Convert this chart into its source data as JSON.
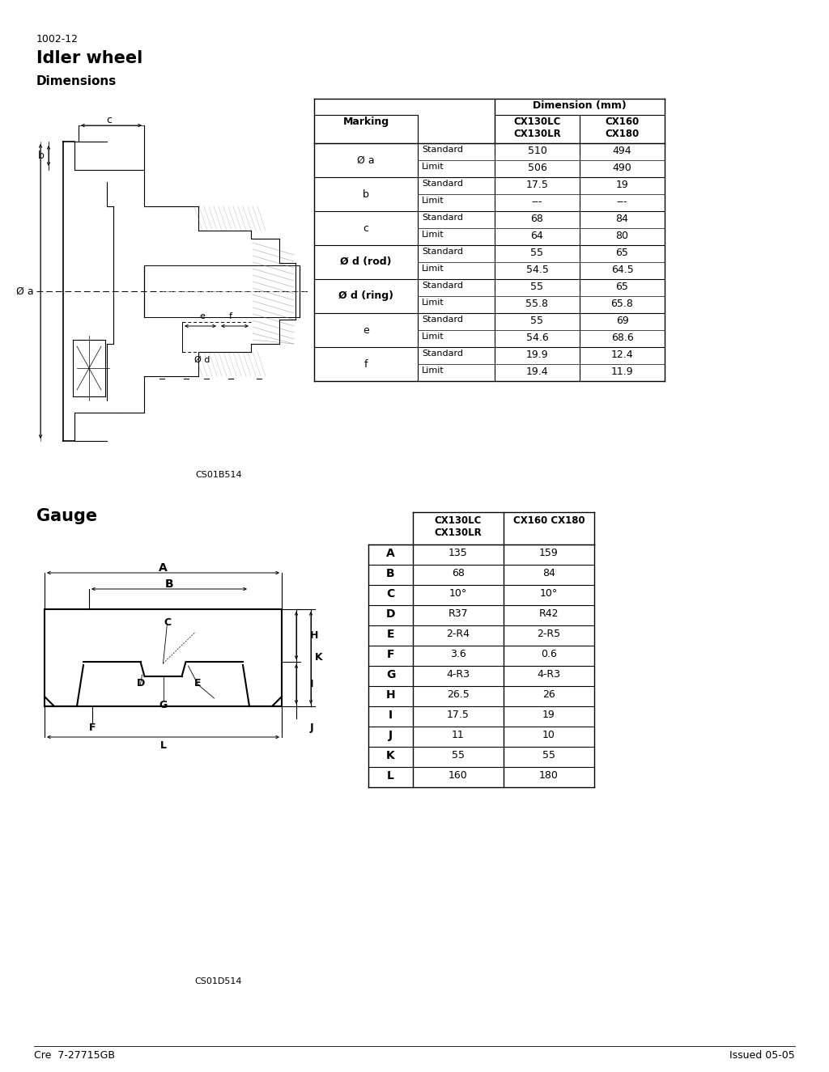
{
  "page_number": "1002-12",
  "title": "Idler wheel",
  "subtitle": "Dimensions",
  "section2_title": "Gauge",
  "footer_left": "Cre  7-27715GB",
  "footer_right": "Issued 05-05",
  "caption1": "CS01B514",
  "caption2": "CS01D514",
  "dim_table": {
    "dim_header": "Dimension (mm)",
    "marking_label": "Marking",
    "cx130": "CX130LC\nCX130LR",
    "cx160": "CX160\nCX180",
    "rows": [
      [
        "Ø a",
        "Standard",
        "510",
        "494"
      ],
      [
        "Ø a",
        "Limit",
        "506",
        "490"
      ],
      [
        "b",
        "Standard",
        "17.5",
        "19"
      ],
      [
        "b",
        "Limit",
        "---",
        "---"
      ],
      [
        "c",
        "Standard",
        "68",
        "84"
      ],
      [
        "c",
        "Limit",
        "64",
        "80"
      ],
      [
        "Ø d (rod)",
        "Standard",
        "55",
        "65"
      ],
      [
        "Ø d (rod)",
        "Limit",
        "54.5",
        "64.5"
      ],
      [
        "Ø d (ring)",
        "Standard",
        "55",
        "65"
      ],
      [
        "Ø d (ring)",
        "Limit",
        "55.8",
        "65.8"
      ],
      [
        "e",
        "Standard",
        "55",
        "69"
      ],
      [
        "e",
        "Limit",
        "54.6",
        "68.6"
      ],
      [
        "f",
        "Standard",
        "19.9",
        "12.4"
      ],
      [
        "f",
        "Limit",
        "19.4",
        "11.9"
      ]
    ]
  },
  "gauge_table": {
    "cx130": "CX130LC\nCX130LR",
    "cx160": "CX160 CX180",
    "rows": [
      [
        "A",
        "135",
        "159"
      ],
      [
        "B",
        "68",
        "84"
      ],
      [
        "C",
        "10°",
        "10°"
      ],
      [
        "D",
        "R37",
        "R42"
      ],
      [
        "E",
        "2-R4",
        "2-R5"
      ],
      [
        "F",
        "3.6",
        "0.6"
      ],
      [
        "G",
        "4-R3",
        "4-R3"
      ],
      [
        "H",
        "26.5",
        "26"
      ],
      [
        "I",
        "17.5",
        "19"
      ],
      [
        "J",
        "11",
        "10"
      ],
      [
        "K",
        "55",
        "55"
      ],
      [
        "L",
        "160",
        "180"
      ]
    ]
  }
}
